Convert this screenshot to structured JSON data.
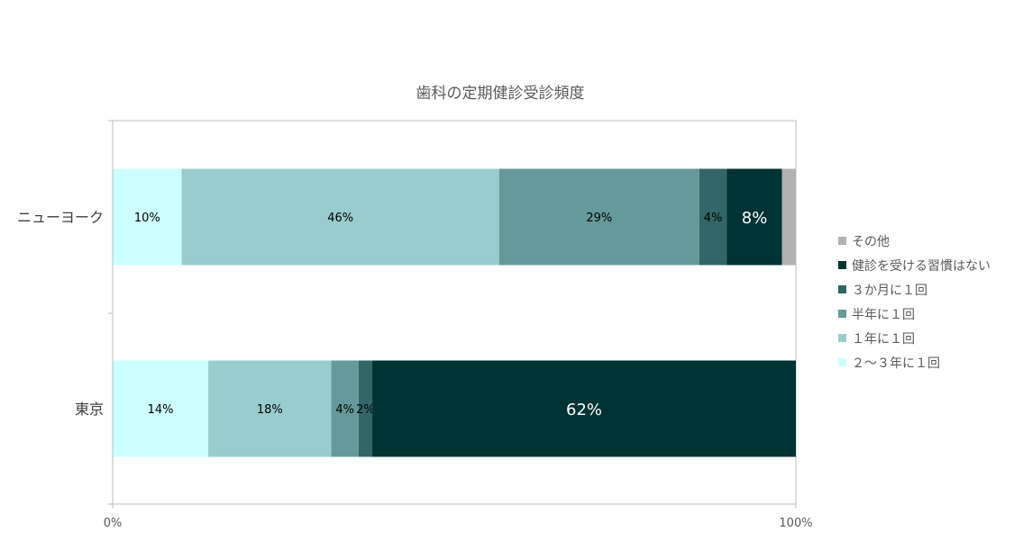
{
  "chart_data": {
    "type": "bar",
    "orientation": "horizontal",
    "stacked": "percent",
    "title": "歯科の定期健診受診頻度",
    "categories": [
      "ニューヨーク",
      "東京"
    ],
    "series": [
      {
        "name": "２～３年に１回",
        "color": "#ccffff",
        "values": [
          10,
          14
        ],
        "labels": [
          "10%",
          "14%"
        ]
      },
      {
        "name": "１年に１回",
        "color": "#99cccc",
        "values": [
          46,
          18
        ],
        "labels": [
          "46%",
          "18%"
        ]
      },
      {
        "name": "半年に１回",
        "color": "#669999",
        "values": [
          29,
          4
        ],
        "labels": [
          "29%",
          "4%"
        ]
      },
      {
        "name": "３か月に１回",
        "color": "#336666",
        "values": [
          4,
          2
        ],
        "labels": [
          "4%",
          "2%"
        ]
      },
      {
        "name": "健診を受ける習慣はない",
        "color": "#003333",
        "values": [
          8,
          62
        ],
        "labels": [
          "8%",
          "62%"
        ]
      },
      {
        "name": "その他",
        "color": "#b2b2b2",
        "values": [
          2,
          0
        ],
        "labels": [
          "",
          ""
        ]
      }
    ],
    "xlim": [
      0,
      100
    ],
    "x_tick_labels": [
      "0%",
      "100%"
    ],
    "legend_position": "right",
    "grid": false
  }
}
